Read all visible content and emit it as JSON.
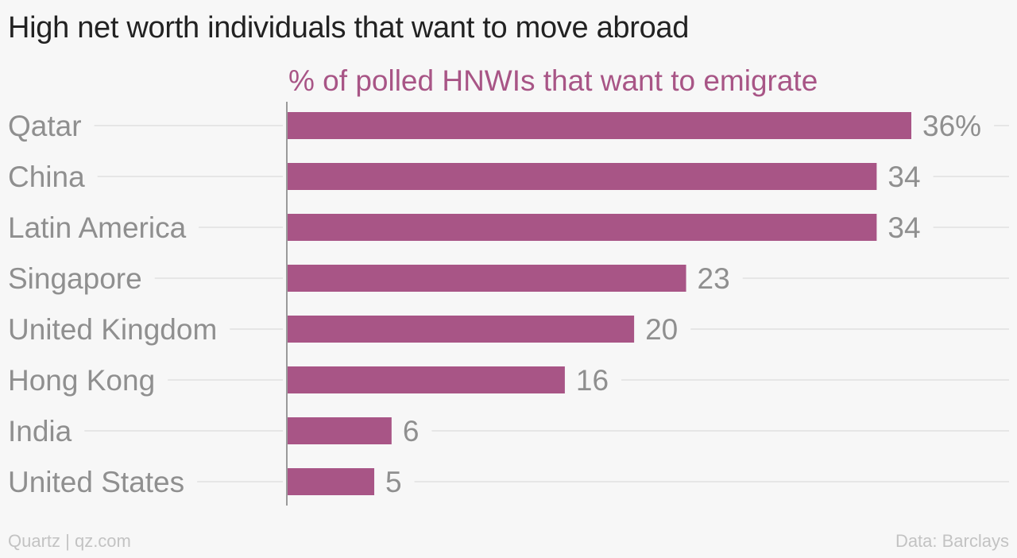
{
  "chart_data": {
    "type": "bar",
    "orientation": "horizontal",
    "title": "High net worth individuals that want to move abroad",
    "series": [
      {
        "name": "% of polled HNWIs that want to emigrate",
        "color": "#a85586",
        "values": [
          36,
          34,
          34,
          23,
          20,
          16,
          6,
          5
        ]
      }
    ],
    "categories": [
      "Qatar",
      "China",
      "Latin America",
      "Singapore",
      "United Kingdom",
      "Hong Kong",
      "India",
      "United States"
    ],
    "value_labels": [
      "36%",
      "34",
      "34",
      "23",
      "20",
      "16",
      "6",
      "5"
    ],
    "xlim": [
      0,
      36
    ],
    "grid": true,
    "legend": "top"
  },
  "footer": {
    "source_left": "Quartz | qz.com",
    "source_right": "Data: Barclays"
  },
  "colors": {
    "bar": "#a85586",
    "text_muted": "#8f8f8f",
    "gridline": "#e6e6e6",
    "axis": "#9a9a9a",
    "footer": "#c3c3c3",
    "background": "#f7f7f7"
  }
}
